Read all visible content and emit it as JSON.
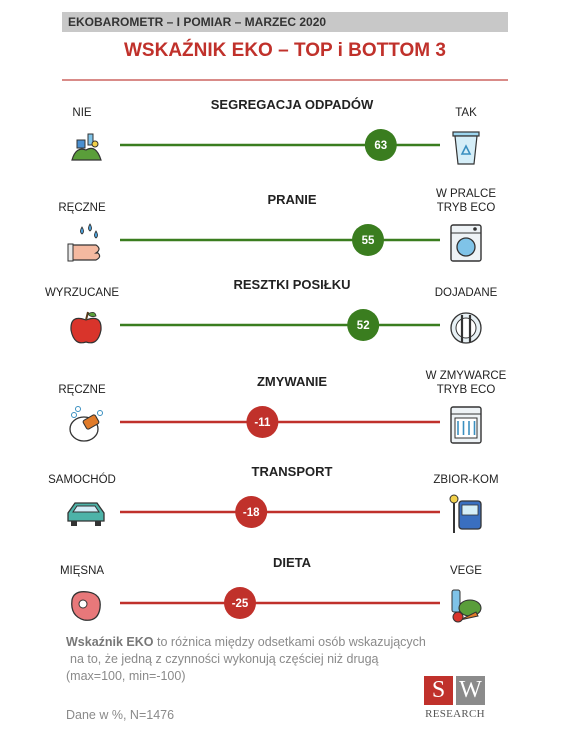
{
  "header": {
    "text": "EKOBAROMETR – I POMIAR – MARZEC 2020"
  },
  "title": "WSKAŹNIK EKO – TOP i BOTTOM 3",
  "chart_data": {
    "type": "scatter",
    "xlim": [
      -100,
      100
    ],
    "positive_color": "#3a7d1f",
    "negative_color": "#c0312b",
    "rows": [
      {
        "category": "SEGREGACJA ODPADÓW",
        "left_label": [
          "NIE"
        ],
        "right_label": [
          "TAK"
        ],
        "value": 63,
        "value_label": "63",
        "left_icon": "trash-pile-icon",
        "right_icon": "recycle-bin-icon"
      },
      {
        "category": "PRANIE",
        "left_label": [
          "RĘCZNE"
        ],
        "right_label": [
          "W PRALCE",
          "TRYB ECO"
        ],
        "value": 55,
        "value_label": "55",
        "left_icon": "hand-wash-icon",
        "right_icon": "washing-machine-icon"
      },
      {
        "category": "RESZTKI POSIŁKU",
        "left_label": [
          "WYRZUCANE"
        ],
        "right_label": [
          "DOJADANE"
        ],
        "value": 52,
        "value_label": "52",
        "left_icon": "apple-icon",
        "right_icon": "plate-cutlery-icon"
      },
      {
        "category": "ZMYWANIE",
        "left_label": [
          "RĘCZNE"
        ],
        "right_label": [
          "W ZMYWARCE",
          "TRYB ECO"
        ],
        "value": -11,
        "value_label": "-11",
        "left_icon": "dish-washing-icon",
        "right_icon": "dishwasher-icon"
      },
      {
        "category": "TRANSPORT",
        "left_label": [
          "SAMOCHÓD"
        ],
        "right_label": [
          "ZBIOR-KOM"
        ],
        "value": -18,
        "value_label": "-18",
        "left_icon": "car-icon",
        "right_icon": "bus-stop-icon"
      },
      {
        "category": "DIETA",
        "left_label": [
          "MIĘSNA"
        ],
        "right_label": [
          "VEGE"
        ],
        "value": -25,
        "value_label": "-25",
        "left_icon": "steak-icon",
        "right_icon": "vegetables-icon"
      }
    ]
  },
  "note": {
    "bold": "Wskaźnik EKO",
    "line1": " to różnica między odsetkami osób wskazujących",
    "line2": "na to, że jedną z czynności wykonują częściej niż drugą",
    "line3": "(max=100, min=-100)"
  },
  "sample": "Dane w %, N=1476",
  "logo": {
    "s": "S",
    "w": "W",
    "research": "RESEARCH"
  }
}
